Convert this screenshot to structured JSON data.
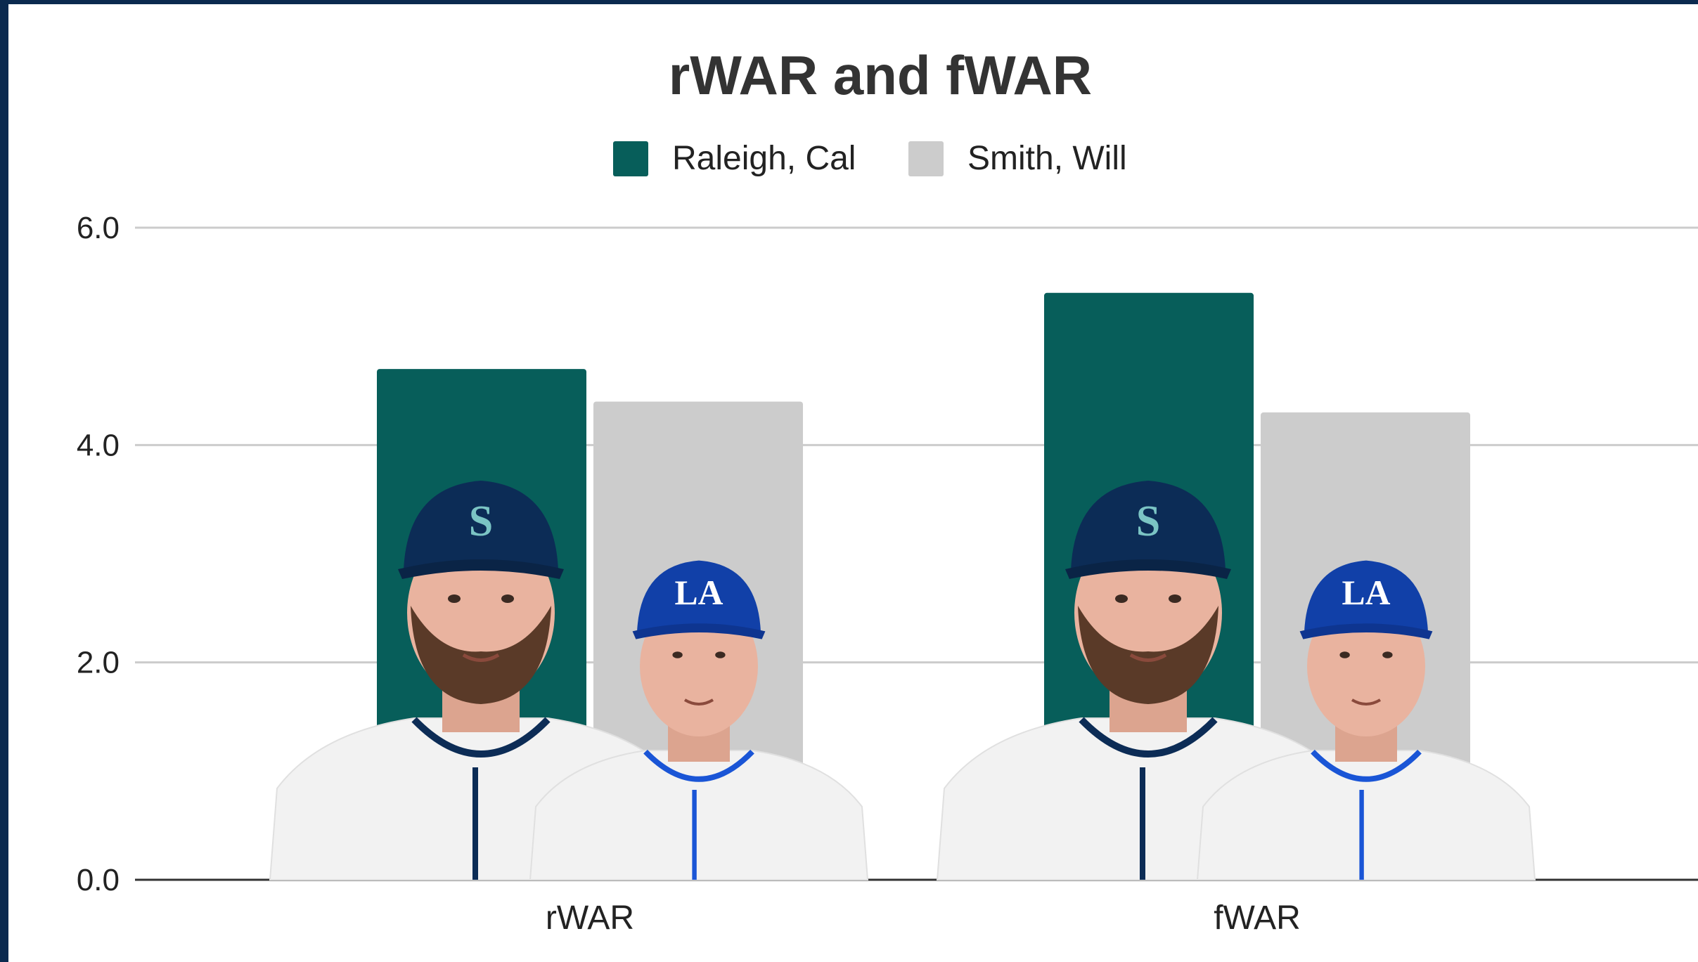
{
  "chart_data": {
    "type": "bar",
    "title": "rWAR and fWAR",
    "xlabel": "",
    "ylabel": "",
    "categories": [
      "rWAR",
      "fWAR"
    ],
    "series": [
      {
        "name": "Raleigh, Cal",
        "values": [
          4.7,
          5.4
        ],
        "color": "#075e5a",
        "player_team": "Seattle Mariners"
      },
      {
        "name": "Smith, Will",
        "values": [
          4.4,
          4.3
        ],
        "color": "#cccccc",
        "player_team": "Los Angeles Dodgers"
      }
    ],
    "ylim": [
      0,
      6
    ],
    "yticks": [
      "0.0",
      "2.0",
      "4.0",
      "6.0"
    ],
    "grid": true,
    "legend_position": "top"
  },
  "colors": {
    "frame_border": "#0b2a4f",
    "mariners_navy": "#0c2c56",
    "mariners_teal": "#005c5c",
    "dodgers_blue": "#005a9c"
  }
}
